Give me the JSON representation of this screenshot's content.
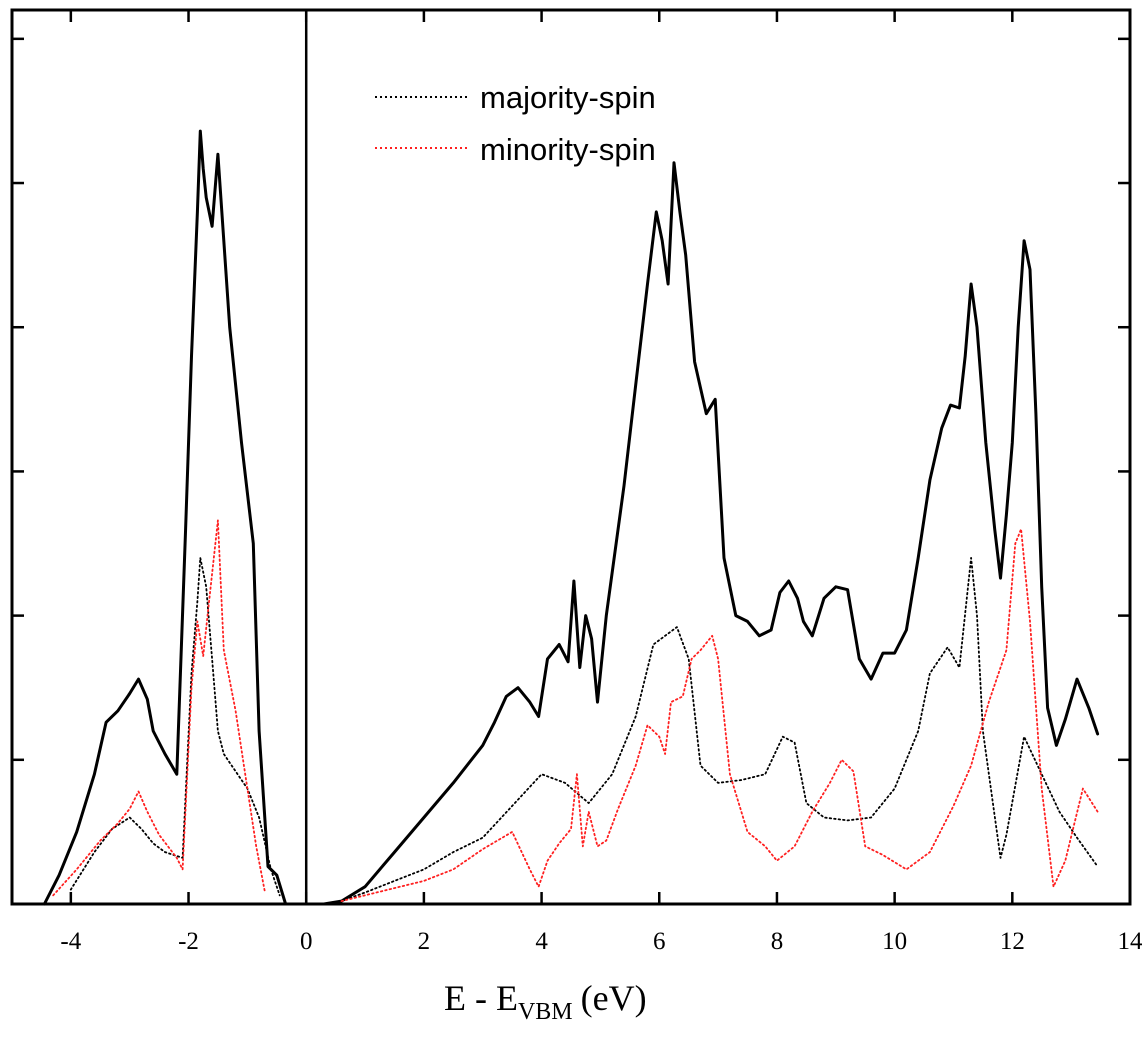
{
  "chart_data": {
    "type": "line",
    "title": "",
    "xlabel": {
      "main": "E - E",
      "sub": "VBM",
      "unit": "(eV)"
    },
    "ylabel": "",
    "xlim": [
      -5,
      14
    ],
    "ylim": [
      0,
      31
    ],
    "x_ticks": [
      -4,
      -2,
      0,
      2,
      4,
      6,
      8,
      10,
      12,
      14
    ],
    "x_tick_labels": [
      "-4",
      "-2",
      "0",
      "2",
      "4",
      "6",
      "8",
      "10",
      "12",
      "14"
    ],
    "y_ticks": [
      5,
      10,
      15,
      20,
      25,
      30
    ],
    "y_tick_labels_shown": false,
    "vertical_marker_x": 0,
    "grid": false,
    "legend_position": "top-center",
    "series": [
      {
        "key": "total",
        "name": "",
        "color": "#000000",
        "style": "solid",
        "segments": [
          [
            [
              -4.45,
              0
            ],
            [
              -4.2,
              1
            ],
            [
              -3.9,
              2.5
            ],
            [
              -3.6,
              4.5
            ],
            [
              -3.4,
              6.3
            ],
            [
              -3.2,
              6.7
            ],
            [
              -3.0,
              7.3
            ],
            [
              -2.85,
              7.8
            ],
            [
              -2.7,
              7.1
            ],
            [
              -2.6,
              6.0
            ],
            [
              -2.4,
              5.2
            ],
            [
              -2.2,
              4.5
            ],
            [
              -2.05,
              13.0
            ],
            [
              -1.95,
              19.0
            ],
            [
              -1.85,
              24.0
            ],
            [
              -1.8,
              26.8
            ],
            [
              -1.75,
              25.5
            ],
            [
              -1.7,
              24.5
            ],
            [
              -1.6,
              23.5
            ],
            [
              -1.5,
              26.0
            ],
            [
              -1.4,
              23.0
            ],
            [
              -1.3,
              20.0
            ],
            [
              -1.2,
              18.0
            ],
            [
              -1.1,
              16.0
            ],
            [
              -0.9,
              12.5
            ],
            [
              -0.8,
              6.0
            ],
            [
              -0.65,
              1.3
            ],
            [
              -0.5,
              1.0
            ],
            [
              -0.35,
              0
            ]
          ],
          [
            [
              0.3,
              0
            ],
            [
              0.6,
              0.1
            ],
            [
              1.0,
              0.6
            ],
            [
              1.5,
              1.8
            ],
            [
              2.0,
              3.0
            ],
            [
              2.5,
              4.2
            ],
            [
              3.0,
              5.5
            ],
            [
              3.2,
              6.3
            ],
            [
              3.4,
              7.2
            ],
            [
              3.6,
              7.5
            ],
            [
              3.8,
              7.0
            ],
            [
              3.95,
              6.5
            ],
            [
              4.1,
              8.5
            ],
            [
              4.3,
              9.0
            ],
            [
              4.45,
              8.4
            ],
            [
              4.55,
              11.2
            ],
            [
              4.65,
              8.2
            ],
            [
              4.75,
              10.0
            ],
            [
              4.85,
              9.2
            ],
            [
              4.95,
              7.0
            ],
            [
              5.1,
              10.0
            ],
            [
              5.4,
              14.5
            ],
            [
              5.6,
              18.0
            ],
            [
              5.8,
              21.5
            ],
            [
              5.95,
              24.0
            ],
            [
              6.05,
              23.0
            ],
            [
              6.15,
              21.5
            ],
            [
              6.25,
              25.7
            ],
            [
              6.35,
              24.0
            ],
            [
              6.45,
              22.5
            ],
            [
              6.6,
              18.8
            ],
            [
              6.8,
              17.0
            ],
            [
              6.95,
              17.5
            ],
            [
              7.1,
              12.0
            ],
            [
              7.3,
              10.0
            ],
            [
              7.5,
              9.8
            ],
            [
              7.7,
              9.3
            ],
            [
              7.9,
              9.5
            ],
            [
              8.05,
              10.8
            ],
            [
              8.2,
              11.2
            ],
            [
              8.35,
              10.6
            ],
            [
              8.45,
              9.8
            ],
            [
              8.6,
              9.3
            ],
            [
              8.8,
              10.6
            ],
            [
              9.0,
              11.0
            ],
            [
              9.2,
              10.9
            ],
            [
              9.4,
              8.5
            ],
            [
              9.6,
              7.8
            ],
            [
              9.8,
              8.7
            ],
            [
              10.0,
              8.7
            ],
            [
              10.2,
              9.5
            ],
            [
              10.4,
              12.0
            ],
            [
              10.6,
              14.7
            ],
            [
              10.8,
              16.5
            ],
            [
              10.95,
              17.3
            ],
            [
              11.1,
              17.2
            ],
            [
              11.2,
              19.0
            ],
            [
              11.3,
              21.5
            ],
            [
              11.4,
              20.0
            ],
            [
              11.55,
              16.0
            ],
            [
              11.7,
              13.0
            ],
            [
              11.8,
              11.3
            ],
            [
              11.9,
              13.5
            ],
            [
              12.0,
              16.0
            ],
            [
              12.1,
              20.0
            ],
            [
              12.2,
              23.0
            ],
            [
              12.3,
              22.0
            ],
            [
              12.4,
              17.0
            ],
            [
              12.5,
              11.0
            ],
            [
              12.6,
              6.8
            ],
            [
              12.75,
              5.5
            ],
            [
              12.9,
              6.4
            ],
            [
              13.1,
              7.8
            ],
            [
              13.3,
              6.8
            ],
            [
              13.45,
              5.9
            ]
          ]
        ]
      },
      {
        "key": "majority",
        "name": "majority-spin",
        "color": "#000000",
        "style": "dotted",
        "segments": [
          [
            [
              -4.0,
              0.5
            ],
            [
              -3.6,
              1.8
            ],
            [
              -3.3,
              2.6
            ],
            [
              -3.0,
              3.0
            ],
            [
              -2.8,
              2.6
            ],
            [
              -2.6,
              2.1
            ],
            [
              -2.4,
              1.8
            ],
            [
              -2.1,
              1.6
            ],
            [
              -1.95,
              8.0
            ],
            [
              -1.85,
              10.5
            ],
            [
              -1.8,
              12.0
            ],
            [
              -1.7,
              11.0
            ],
            [
              -1.6,
              8.5
            ],
            [
              -1.5,
              6.0
            ],
            [
              -1.4,
              5.2
            ],
            [
              -1.2,
              4.6
            ],
            [
              -1.0,
              4.0
            ],
            [
              -0.8,
              3.0
            ],
            [
              -0.6,
              1.2
            ],
            [
              -0.45,
              0.3
            ]
          ],
          [
            [
              0.6,
              0.1
            ],
            [
              1.0,
              0.4
            ],
            [
              1.5,
              0.8
            ],
            [
              2.0,
              1.2
            ],
            [
              2.5,
              1.8
            ],
            [
              3.0,
              2.3
            ],
            [
              3.5,
              3.4
            ],
            [
              4.0,
              4.5
            ],
            [
              4.4,
              4.2
            ],
            [
              4.8,
              3.5
            ],
            [
              5.2,
              4.5
            ],
            [
              5.6,
              6.5
            ],
            [
              5.9,
              9.0
            ],
            [
              6.1,
              9.3
            ],
            [
              6.3,
              9.6
            ],
            [
              6.5,
              8.5
            ],
            [
              6.7,
              4.8
            ],
            [
              7.0,
              4.2
            ],
            [
              7.4,
              4.3
            ],
            [
              7.8,
              4.5
            ],
            [
              8.1,
              5.8
            ],
            [
              8.3,
              5.6
            ],
            [
              8.5,
              3.5
            ],
            [
              8.8,
              3.0
            ],
            [
              9.2,
              2.9
            ],
            [
              9.6,
              3.0
            ],
            [
              10.0,
              4.0
            ],
            [
              10.4,
              6.0
            ],
            [
              10.6,
              8.0
            ],
            [
              10.9,
              8.9
            ],
            [
              11.1,
              8.2
            ],
            [
              11.3,
              12.0
            ],
            [
              11.4,
              10.0
            ],
            [
              11.5,
              6.0
            ],
            [
              11.8,
              1.6
            ],
            [
              11.9,
              2.4
            ],
            [
              12.2,
              5.8
            ],
            [
              12.5,
              4.5
            ],
            [
              12.8,
              3.2
            ],
            [
              13.1,
              2.3
            ],
            [
              13.45,
              1.3
            ]
          ]
        ]
      },
      {
        "key": "minority",
        "name": "minority-spin",
        "color": "#ff2020",
        "style": "dotted",
        "segments": [
          [
            [
              -4.3,
              0.3
            ],
            [
              -3.9,
              1.2
            ],
            [
              -3.5,
              2.2
            ],
            [
              -3.2,
              2.8
            ],
            [
              -3.0,
              3.3
            ],
            [
              -2.85,
              3.9
            ],
            [
              -2.7,
              3.2
            ],
            [
              -2.5,
              2.4
            ],
            [
              -2.2,
              1.6
            ],
            [
              -2.1,
              1.2
            ],
            [
              -1.95,
              7.5
            ],
            [
              -1.85,
              9.8
            ],
            [
              -1.75,
              8.6
            ],
            [
              -1.65,
              10.5
            ],
            [
              -1.5,
              13.3
            ],
            [
              -1.4,
              8.8
            ],
            [
              -1.2,
              6.7
            ],
            [
              -1.0,
              4.0
            ],
            [
              -0.85,
              2.0
            ],
            [
              -0.7,
              0.4
            ]
          ],
          [
            [
              0.6,
              0.1
            ],
            [
              1.0,
              0.3
            ],
            [
              2.0,
              0.8
            ],
            [
              2.5,
              1.2
            ],
            [
              3.0,
              1.9
            ],
            [
              3.5,
              2.5
            ],
            [
              3.8,
              1.2
            ],
            [
              3.95,
              0.6
            ],
            [
              4.1,
              1.5
            ],
            [
              4.3,
              2.1
            ],
            [
              4.5,
              2.6
            ],
            [
              4.6,
              4.5
            ],
            [
              4.7,
              2.0
            ],
            [
              4.8,
              3.2
            ],
            [
              4.95,
              2.0
            ],
            [
              5.1,
              2.2
            ],
            [
              5.3,
              3.3
            ],
            [
              5.6,
              4.8
            ],
            [
              5.8,
              6.2
            ],
            [
              6.0,
              5.8
            ],
            [
              6.1,
              5.2
            ],
            [
              6.2,
              7.0
            ],
            [
              6.4,
              7.2
            ],
            [
              6.55,
              8.5
            ],
            [
              6.7,
              8.8
            ],
            [
              6.9,
              9.3
            ],
            [
              7.0,
              8.5
            ],
            [
              7.2,
              4.5
            ],
            [
              7.5,
              2.5
            ],
            [
              7.8,
              2.0
            ],
            [
              8.0,
              1.5
            ],
            [
              8.3,
              2.0
            ],
            [
              8.6,
              3.2
            ],
            [
              8.9,
              4.2
            ],
            [
              9.1,
              5.0
            ],
            [
              9.3,
              4.6
            ],
            [
              9.5,
              2.0
            ],
            [
              9.8,
              1.7
            ],
            [
              10.2,
              1.2
            ],
            [
              10.6,
              1.8
            ],
            [
              11.0,
              3.4
            ],
            [
              11.3,
              4.8
            ],
            [
              11.6,
              7.0
            ],
            [
              11.9,
              8.8
            ],
            [
              12.05,
              12.5
            ],
            [
              12.15,
              13.0
            ],
            [
              12.3,
              9.8
            ],
            [
              12.5,
              4.0
            ],
            [
              12.7,
              0.6
            ],
            [
              12.9,
              1.5
            ],
            [
              13.2,
              4.0
            ],
            [
              13.45,
              3.2
            ]
          ]
        ]
      }
    ]
  }
}
